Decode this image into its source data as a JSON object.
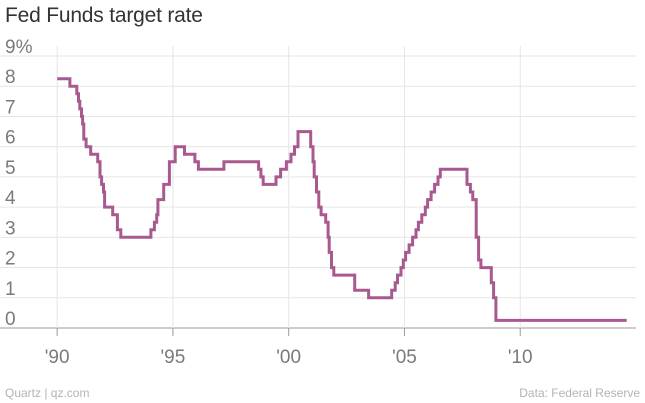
{
  "title": "Fed Funds target rate",
  "footer": {
    "credit": "Quartz | qz.com",
    "source": "Data: Federal Reserve"
  },
  "chart_data": {
    "type": "line",
    "step": true,
    "title": "Fed Funds target rate",
    "xlabel": "",
    "ylabel": "",
    "xlim": [
      1989.0,
      2015.0
    ],
    "ylim": [
      0,
      9
    ],
    "grid": true,
    "line_color": "#a8598f",
    "x_ticks": [
      {
        "value": 1990,
        "label": "'90"
      },
      {
        "value": 1995,
        "label": "'95"
      },
      {
        "value": 2000,
        "label": "'00"
      },
      {
        "value": 2005,
        "label": "'05"
      },
      {
        "value": 2010,
        "label": "'10"
      }
    ],
    "y_ticks": [
      {
        "value": 0,
        "label": "0"
      },
      {
        "value": 1,
        "label": "1"
      },
      {
        "value": 2,
        "label": "2"
      },
      {
        "value": 3,
        "label": "3"
      },
      {
        "value": 4,
        "label": "4"
      },
      {
        "value": 5,
        "label": "5"
      },
      {
        "value": 6,
        "label": "6"
      },
      {
        "value": 7,
        "label": "7"
      },
      {
        "value": 8,
        "label": "8"
      },
      {
        "value": 9,
        "label": "9%"
      }
    ],
    "series": [
      {
        "points": [
          [
            1990.0,
            8.25
          ],
          [
            1990.55,
            8.0
          ],
          [
            1990.85,
            7.75
          ],
          [
            1990.92,
            7.5
          ],
          [
            1990.98,
            7.25
          ],
          [
            1991.05,
            7.0
          ],
          [
            1991.1,
            6.75
          ],
          [
            1991.15,
            6.25
          ],
          [
            1991.25,
            6.0
          ],
          [
            1991.45,
            5.75
          ],
          [
            1991.75,
            5.5
          ],
          [
            1991.85,
            5.0
          ],
          [
            1991.92,
            4.75
          ],
          [
            1992.0,
            4.5
          ],
          [
            1992.05,
            4.0
          ],
          [
            1992.4,
            3.75
          ],
          [
            1992.6,
            3.25
          ],
          [
            1992.75,
            3.0
          ],
          [
            1994.05,
            3.25
          ],
          [
            1994.2,
            3.5
          ],
          [
            1994.3,
            3.75
          ],
          [
            1994.35,
            4.25
          ],
          [
            1994.6,
            4.75
          ],
          [
            1994.85,
            5.5
          ],
          [
            1995.1,
            6.0
          ],
          [
            1995.5,
            5.75
          ],
          [
            1995.95,
            5.5
          ],
          [
            1996.1,
            5.25
          ],
          [
            1997.2,
            5.5
          ],
          [
            1998.7,
            5.25
          ],
          [
            1998.8,
            5.0
          ],
          [
            1998.9,
            4.75
          ],
          [
            1999.45,
            5.0
          ],
          [
            1999.65,
            5.25
          ],
          [
            1999.9,
            5.5
          ],
          [
            2000.1,
            5.75
          ],
          [
            2000.25,
            6.0
          ],
          [
            2000.4,
            6.5
          ],
          [
            2000.95,
            6.0
          ],
          [
            2001.05,
            5.5
          ],
          [
            2001.1,
            5.0
          ],
          [
            2001.2,
            4.5
          ],
          [
            2001.3,
            4.0
          ],
          [
            2001.4,
            3.75
          ],
          [
            2001.6,
            3.5
          ],
          [
            2001.7,
            3.0
          ],
          [
            2001.75,
            2.5
          ],
          [
            2001.85,
            2.0
          ],
          [
            2001.95,
            1.75
          ],
          [
            2002.85,
            1.25
          ],
          [
            2003.45,
            1.0
          ],
          [
            2004.45,
            1.25
          ],
          [
            2004.6,
            1.5
          ],
          [
            2004.7,
            1.75
          ],
          [
            2004.85,
            2.0
          ],
          [
            2004.95,
            2.25
          ],
          [
            2005.05,
            2.5
          ],
          [
            2005.2,
            2.75
          ],
          [
            2005.35,
            3.0
          ],
          [
            2005.5,
            3.25
          ],
          [
            2005.6,
            3.5
          ],
          [
            2005.75,
            3.75
          ],
          [
            2005.9,
            4.0
          ],
          [
            2006.0,
            4.25
          ],
          [
            2006.15,
            4.5
          ],
          [
            2006.3,
            4.75
          ],
          [
            2006.45,
            5.0
          ],
          [
            2006.55,
            5.25
          ],
          [
            2007.7,
            4.75
          ],
          [
            2007.85,
            4.5
          ],
          [
            2007.95,
            4.25
          ],
          [
            2008.1,
            3.0
          ],
          [
            2008.2,
            2.25
          ],
          [
            2008.3,
            2.0
          ],
          [
            2008.75,
            1.5
          ],
          [
            2008.85,
            1.0
          ],
          [
            2008.95,
            0.25
          ],
          [
            2014.6,
            0.25
          ]
        ]
      }
    ]
  }
}
